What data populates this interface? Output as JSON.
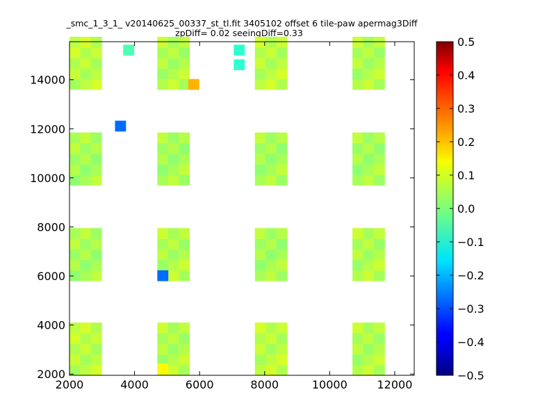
{
  "chart_data": {
    "type": "heatmap",
    "title_lines": [
      "_smc_1_3_1_ v20140625_00337_st_tl.fit 3405102 offset 6 tile-paw apermag3Diff",
      "zpDiff= 0.02 seeingDiff=0.33"
    ],
    "xlabel": "",
    "ylabel": "",
    "xlim": [
      2000,
      12600
    ],
    "ylim": [
      1950,
      15550
    ],
    "x_ticks": [
      2000,
      4000,
      6000,
      8000,
      10000,
      12000
    ],
    "y_ticks": [
      2000,
      4000,
      6000,
      8000,
      10000,
      12000,
      14000
    ],
    "colorbar": {
      "colormap": "jet",
      "range": [
        -0.5,
        0.5
      ],
      "ticks": [
        -0.5,
        -0.4,
        -0.3,
        -0.2,
        -0.1,
        0.0,
        0.1,
        0.2,
        0.3,
        0.4,
        0.5
      ],
      "tick_labels": [
        "−0.5",
        "−0.4",
        "−0.3",
        "−0.2",
        "−0.1",
        "0.0",
        "0.1",
        "0.2",
        "0.3",
        "0.4",
        "0.5"
      ]
    },
    "grid": false,
    "cell_size": [
      330,
      430
    ],
    "blocks": [
      {
        "x0": 2000,
        "y0": 1950,
        "nx": 3,
        "ny": 5,
        "value": 0.06
      },
      {
        "x0": 4700,
        "y0": 1950,
        "nx": 3,
        "ny": 5,
        "value": 0.05
      },
      {
        "x0": 7700,
        "y0": 1950,
        "nx": 3,
        "ny": 5,
        "value": 0.06
      },
      {
        "x0": 10700,
        "y0": 1950,
        "nx": 3,
        "ny": 5,
        "value": 0.05
      },
      {
        "x0": 2000,
        "y0": 5800,
        "nx": 3,
        "ny": 5,
        "value": 0.04
      },
      {
        "x0": 4700,
        "y0": 5800,
        "nx": 3,
        "ny": 5,
        "value": 0.05
      },
      {
        "x0": 7700,
        "y0": 5800,
        "nx": 3,
        "ny": 5,
        "value": 0.04
      },
      {
        "x0": 10700,
        "y0": 5800,
        "nx": 3,
        "ny": 5,
        "value": 0.05
      },
      {
        "x0": 2000,
        "y0": 9700,
        "nx": 3,
        "ny": 5,
        "value": 0.04
      },
      {
        "x0": 4700,
        "y0": 9700,
        "nx": 3,
        "ny": 5,
        "value": 0.04
      },
      {
        "x0": 7700,
        "y0": 9700,
        "nx": 3,
        "ny": 5,
        "value": 0.04
      },
      {
        "x0": 10700,
        "y0": 9700,
        "nx": 3,
        "ny": 5,
        "value": 0.04
      },
      {
        "x0": 2000,
        "y0": 13600,
        "nx": 3,
        "ny": 5,
        "value": 0.06
      },
      {
        "x0": 4700,
        "y0": 13600,
        "nx": 3,
        "ny": 5,
        "value": 0.05
      },
      {
        "x0": 7700,
        "y0": 13600,
        "nx": 3,
        "ny": 5,
        "value": 0.06
      },
      {
        "x0": 10700,
        "y0": 13600,
        "nx": 3,
        "ny": 5,
        "value": 0.05
      }
    ],
    "highlight_cells": [
      {
        "x": 3400,
        "y": 11900,
        "value": -0.27
      },
      {
        "x": 4700,
        "y": 5800,
        "value": -0.27
      },
      {
        "x": 5650,
        "y": 13600,
        "value": 0.2
      },
      {
        "x": 4700,
        "y": 2000,
        "value": 0.13
      },
      {
        "x": 7050,
        "y": 15000,
        "value": -0.08
      },
      {
        "x": 7050,
        "y": 14400,
        "value": -0.08
      },
      {
        "x": 3650,
        "y": 15000,
        "value": -0.05
      }
    ]
  }
}
